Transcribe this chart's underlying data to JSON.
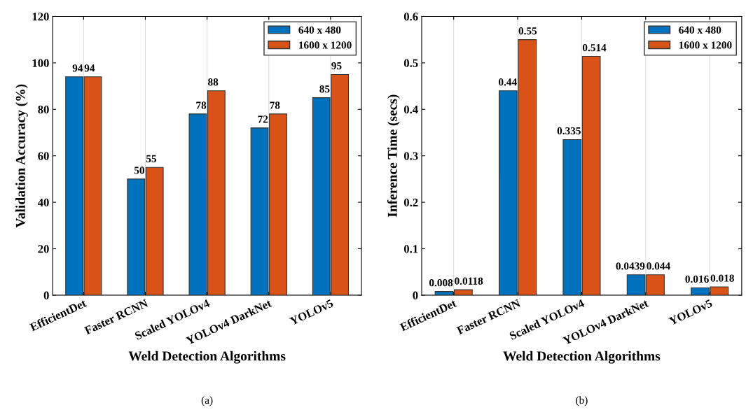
{
  "chart_data": [
    {
      "type": "bar",
      "xlabel": "Weld Detection Algorithms",
      "ylabel": "Validation Accuracy (%)",
      "categories": [
        "EfficientDet",
        "Faster RCNN",
        "Scaled YOLOv4",
        "YOLOv4 DarkNet",
        "YOLOv5"
      ],
      "series": [
        {
          "name": "640 x 480",
          "color": "#0072bd",
          "values": [
            94,
            50,
            78,
            72,
            85
          ]
        },
        {
          "name": "1600 x 1200",
          "color": "#d95319",
          "values": [
            94,
            55,
            88,
            78,
            95
          ]
        }
      ],
      "ylim": [
        0,
        120
      ],
      "yticks": [
        0,
        20,
        40,
        60,
        80,
        100,
        120
      ],
      "grid": "x",
      "legend": "top right",
      "data_labels": true,
      "annotations": [
        "(a)"
      ]
    },
    {
      "type": "bar",
      "xlabel": "Weld Detection Algorithms",
      "ylabel": "Inference Time (secs)",
      "categories": [
        "EfficientDet",
        "Faster RCNN",
        "Scaled YOLOv4",
        "YOLOv4 DarkNet",
        "YOLOv5"
      ],
      "series": [
        {
          "name": "640 x 480",
          "color": "#0072bd",
          "values": [
            0.008,
            0.44,
            0.335,
            0.0439,
            0.016
          ]
        },
        {
          "name": "1600 x 1200",
          "color": "#d95319",
          "values": [
            0.0118,
            0.55,
            0.514,
            0.044,
            0.018
          ]
        }
      ],
      "ylim": [
        0,
        0.6
      ],
      "yticks": [
        0,
        0.1,
        0.2,
        0.3,
        0.4,
        0.5,
        0.6
      ],
      "grid": "x",
      "legend": "top right",
      "data_labels": true,
      "annotations": [
        "(b)"
      ]
    }
  ]
}
